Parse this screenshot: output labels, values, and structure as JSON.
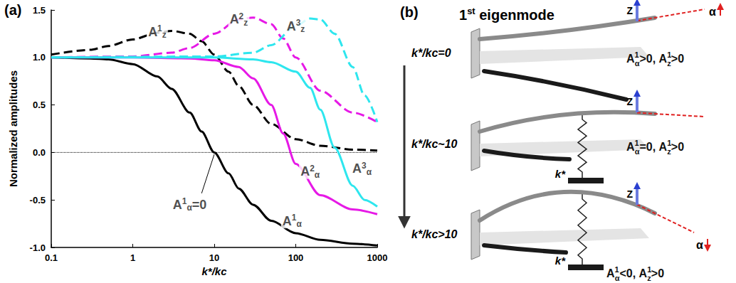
{
  "chart_data": {
    "type": "line",
    "panel_label": "(a)",
    "xlabel": "k*/kc",
    "ylabel": "Normalized amplitudes",
    "log": "x",
    "grid": false,
    "xlim": [
      0.1,
      1000
    ],
    "xticks": [
      0.1,
      1,
      10,
      100,
      1000
    ],
    "ylim": [
      -1.0,
      1.5
    ],
    "yticks": [
      {
        "value": -1.0,
        "label": "-1.0"
      },
      -0.5,
      {
        "value": 0.0,
        "label": "0.0"
      },
      0.5,
      {
        "value": 1.0,
        "label": "1.0"
      },
      1.5
    ],
    "reference_line": 0,
    "series": [
      {
        "color": "#000000",
        "line_style": "solid",
        "x": [
          0.1,
          0.3,
          0.5,
          1,
          2,
          3,
          5,
          7,
          10,
          15,
          20,
          30,
          50,
          100,
          200,
          500,
          1000
        ],
        "values": [
          1.0,
          0.99,
          0.98,
          0.93,
          0.8,
          0.67,
          0.42,
          0.22,
          0.0,
          -0.22,
          -0.38,
          -0.55,
          -0.72,
          -0.85,
          -0.92,
          -0.96,
          -0.98
        ]
      },
      {
        "color": "#000000",
        "line_style": "dashed",
        "x": [
          0.1,
          0.3,
          0.5,
          1,
          2,
          3,
          5,
          7,
          10,
          15,
          20,
          30,
          50,
          100,
          200,
          500,
          1000
        ],
        "values": [
          1.03,
          1.08,
          1.12,
          1.19,
          1.26,
          1.28,
          1.25,
          1.17,
          1.03,
          0.85,
          0.7,
          0.5,
          0.3,
          0.14,
          0.07,
          0.03,
          0.02
        ]
      },
      {
        "color": "#e619e6",
        "line_style": "solid",
        "x": [
          0.1,
          1,
          5,
          10,
          20,
          30,
          50,
          70,
          100,
          200,
          500,
          1000
        ],
        "values": [
          1.0,
          1.0,
          0.99,
          0.97,
          0.9,
          0.78,
          0.5,
          0.2,
          -0.12,
          -0.45,
          -0.6,
          -0.65
        ]
      },
      {
        "color": "#e619e6",
        "line_style": "dashed",
        "x": [
          0.1,
          1,
          3,
          5,
          10,
          20,
          30,
          50,
          70,
          100,
          200,
          500,
          1000
        ],
        "values": [
          1.0,
          1.01,
          1.05,
          1.1,
          1.25,
          1.4,
          1.42,
          1.35,
          1.2,
          1.0,
          0.65,
          0.42,
          0.32
        ]
      },
      {
        "color": "#2ee6ee",
        "line_style": "solid",
        "x": [
          0.1,
          10,
          30,
          50,
          100,
          150,
          200,
          300,
          500,
          700,
          1000
        ],
        "values": [
          1.0,
          1.0,
          0.98,
          0.95,
          0.85,
          0.68,
          0.45,
          0.05,
          -0.35,
          -0.5,
          -0.57
        ]
      },
      {
        "color": "#2ee6ee",
        "line_style": "dashed",
        "x": [
          0.1,
          10,
          30,
          50,
          100,
          150,
          200,
          300,
          500,
          700,
          1000
        ],
        "values": [
          1.0,
          1.01,
          1.05,
          1.13,
          1.33,
          1.41,
          1.4,
          1.25,
          0.9,
          0.6,
          0.32
        ]
      }
    ],
    "annotations": [
      {
        "text": "A",
        "sup": "1",
        "sub": "z",
        "x": 2,
        "y": 1.27
      },
      {
        "text": "A",
        "sup": "2",
        "sub": "z",
        "x": 20,
        "y": 1.4
      },
      {
        "text": "A",
        "sup": "3",
        "sub": "z",
        "x": 100,
        "y": 1.33
      },
      {
        "text": "A",
        "sup": "1",
        "sub": "α",
        "suffix": "=0",
        "x": 5,
        "y": -0.55,
        "leader": [
          [
            7,
            -0.43
          ],
          [
            10,
            -0.02
          ]
        ]
      },
      {
        "text": "A",
        "sup": "1",
        "sub": "α",
        "x": 90,
        "y": -0.72
      },
      {
        "text": "A",
        "sup": "2",
        "sub": "α",
        "x": 150,
        "y": -0.2
      },
      {
        "text": "A",
        "sup": "3",
        "sub": "α",
        "x": 650,
        "y": -0.17
      }
    ]
  },
  "panel_b": {
    "label": "(b)",
    "title": {
      "main": "1",
      "sup": "st",
      "rest": " eigenmode"
    },
    "states": [
      {
        "condition": "k*/kc=0",
        "z_label": "Z",
        "alpha_label": "α",
        "separator": ", ",
        "amplitudes": [
          {
            "base": "A",
            "sup": "1",
            "sub": "α",
            "relation": ">0"
          },
          {
            "base": "A",
            "sup": "1",
            "sub": "z",
            "relation": ">0"
          }
        ]
      },
      {
        "condition": "k*/kc~10",
        "z_label": "Z",
        "spring_label": "k*",
        "separator": ", ",
        "amplitudes": [
          {
            "base": "A",
            "sup": "1",
            "sub": "α",
            "relation": "=0"
          },
          {
            "base": "A",
            "sup": "1",
            "sub": "z",
            "relation": ">0"
          }
        ]
      },
      {
        "condition": "k*/kc>10",
        "z_label": "Z",
        "alpha_label": "α",
        "spring_label": "k*",
        "separator": ", ",
        "amplitudes": [
          {
            "base": "A",
            "sup": "1",
            "sub": "α",
            "relation": "<0"
          },
          {
            "base": "A",
            "sup": "1",
            "sub": "z",
            "relation": ">0"
          }
        ]
      }
    ]
  }
}
